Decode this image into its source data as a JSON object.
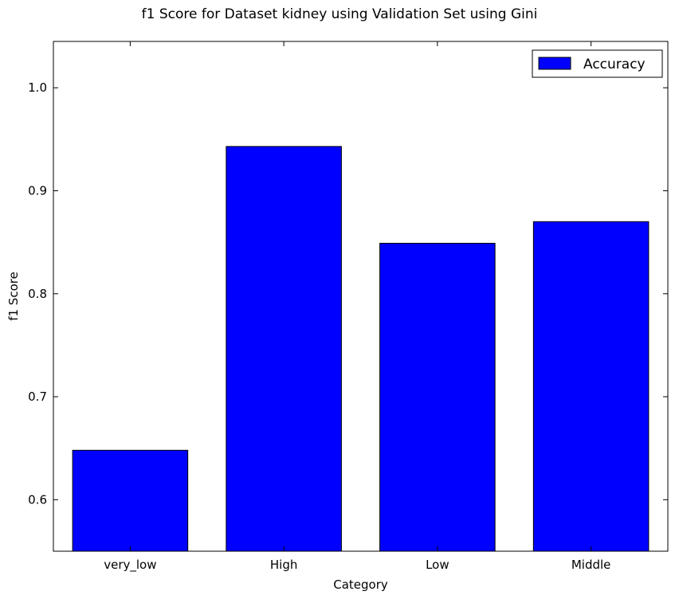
{
  "chart_data": {
    "type": "bar",
    "title": "f1 Score for Dataset kidney using Validation Set using Gini",
    "xlabel": "Category",
    "ylabel": "f1 Score",
    "categories": [
      "very_low",
      "High",
      "Low",
      "Middle"
    ],
    "series": [
      {
        "name": "Accuracy",
        "values": [
          0.648,
          0.943,
          0.849,
          0.87
        ],
        "color": "#0000ff"
      }
    ],
    "ylim": [
      0.55,
      1.045
    ],
    "yticks": [
      0.6,
      0.7,
      0.8,
      0.9,
      1.0
    ],
    "ytick_labels": [
      "0.6",
      "0.7",
      "0.8",
      "0.9",
      "1.0"
    ],
    "grid": false,
    "legend_position": "top-right"
  }
}
